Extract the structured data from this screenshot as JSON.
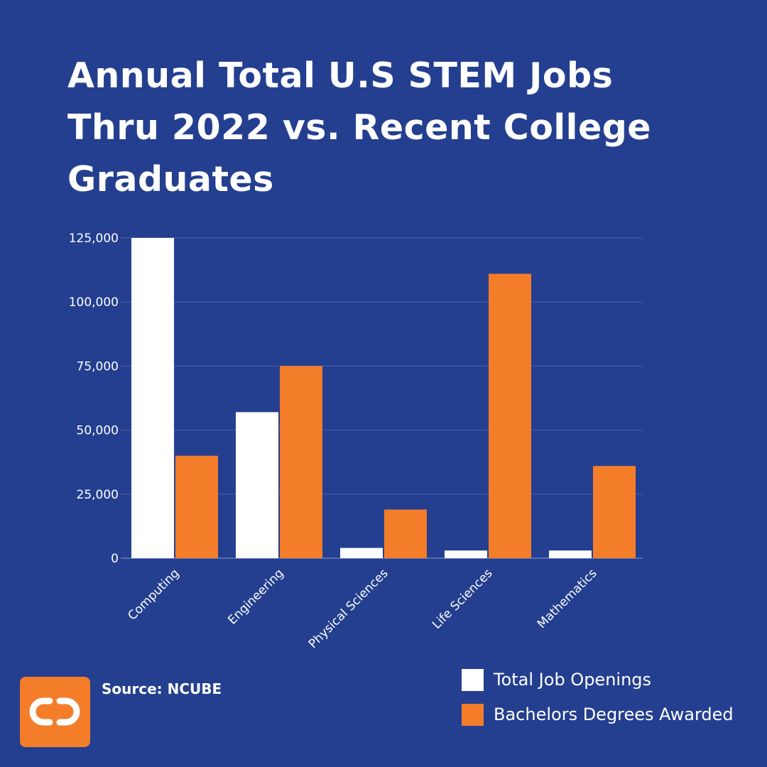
{
  "chart_data": {
    "type": "bar",
    "title": "Annual Total U.S STEM Jobs Thru 2022 vs. Recent College Graduates",
    "xlabel": "",
    "ylabel": "",
    "categories": [
      "Computing",
      "Engineering",
      "Physical Sciences",
      "Life Sciences",
      "Mathematics"
    ],
    "series": [
      {
        "name": "Total Job Openings",
        "color": "#FFFFFF",
        "values": [
          125000,
          57000,
          4000,
          3000,
          3000
        ]
      },
      {
        "name": "Bachelors Degrees Awarded",
        "color": "#F47D2A",
        "values": [
          40000,
          75000,
          19000,
          111000,
          36000
        ]
      }
    ],
    "ylim": [
      0,
      125000
    ],
    "yticks": [
      0,
      25000,
      50000,
      75000,
      100000,
      125000
    ],
    "ytick_labels": [
      "0",
      "25,000",
      "50,000",
      "75,000",
      "100,000",
      "125,000"
    ],
    "grid": true,
    "legend": "bottom-right"
  },
  "source": {
    "text": "Source: NCUBE"
  },
  "logo": {
    "icon": "cd-logo-icon",
    "color": "#F47D2A"
  },
  "colors": {
    "background": "#243F8F",
    "grid": "#4A62A8",
    "axis": "#8A9BCB"
  }
}
